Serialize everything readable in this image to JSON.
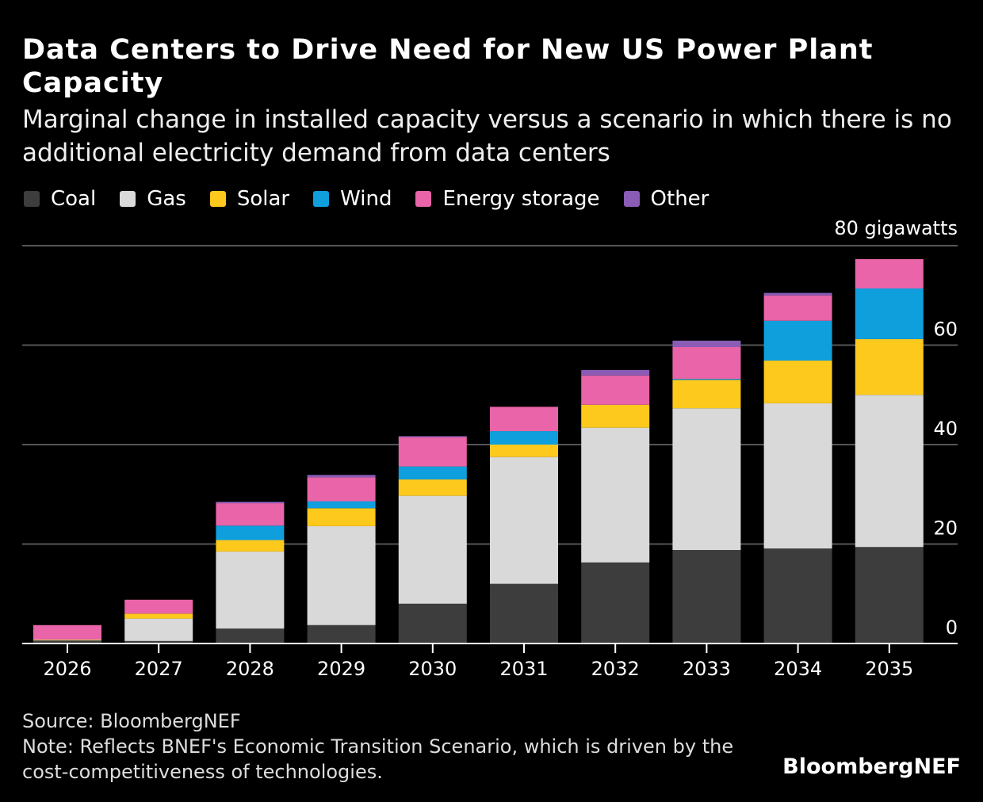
{
  "title": "Data Centers to Drive Need for New US Power Plant Capacity",
  "subtitle": "Marginal change in installed capacity versus a scenario in which there is no additional electricity demand from data centers",
  "source": "Source: BloombergNEF",
  "note": "Note: Reflects BNEF's Economic Transition Scenario, which is driven by the cost-competitiveness of technologies.",
  "brand": "BloombergNEF",
  "chart_data": {
    "type": "stacked-bar",
    "categories": [
      "2026",
      "2027",
      "2028",
      "2029",
      "2030",
      "2031",
      "2032",
      "2033",
      "2034",
      "2035"
    ],
    "ylabel": "80 gigawatts",
    "ylim": [
      0,
      80
    ],
    "yticks": [
      "0",
      "20",
      "40",
      "60"
    ],
    "grid": true,
    "legend_position": "top",
    "series": [
      {
        "name": "Coal",
        "color": "#3d3d3d",
        "values": [
          0.6,
          0.5,
          3.0,
          3.7,
          8.0,
          12.0,
          16.3,
          18.8,
          19.1,
          19.4
        ]
      },
      {
        "name": "Gas",
        "color": "#d9d9d9",
        "values": [
          0.1,
          4.5,
          15.5,
          19.9,
          21.7,
          25.5,
          27.1,
          28.5,
          29.2,
          30.6
        ]
      },
      {
        "name": "Solar",
        "color": "#fdc91c",
        "values": [
          0.1,
          1.0,
          2.3,
          3.6,
          3.3,
          2.5,
          4.6,
          5.7,
          8.6,
          11.2
        ]
      },
      {
        "name": "Wind",
        "color": "#0f9fdd",
        "values": [
          0,
          0,
          2.9,
          1.4,
          2.6,
          2.7,
          0,
          0.2,
          8.0,
          10.2
        ]
      },
      {
        "name": "Energy storage",
        "color": "#e964a8",
        "values": [
          2.9,
          2.8,
          4.5,
          4.8,
          5.9,
          4.9,
          5.9,
          6.4,
          5.1,
          5.9
        ]
      },
      {
        "name": "Other",
        "color": "#8a5cb5",
        "values": [
          0,
          0,
          0.3,
          0.5,
          0.2,
          0,
          1.1,
          1.3,
          0.5,
          0
        ]
      }
    ]
  }
}
